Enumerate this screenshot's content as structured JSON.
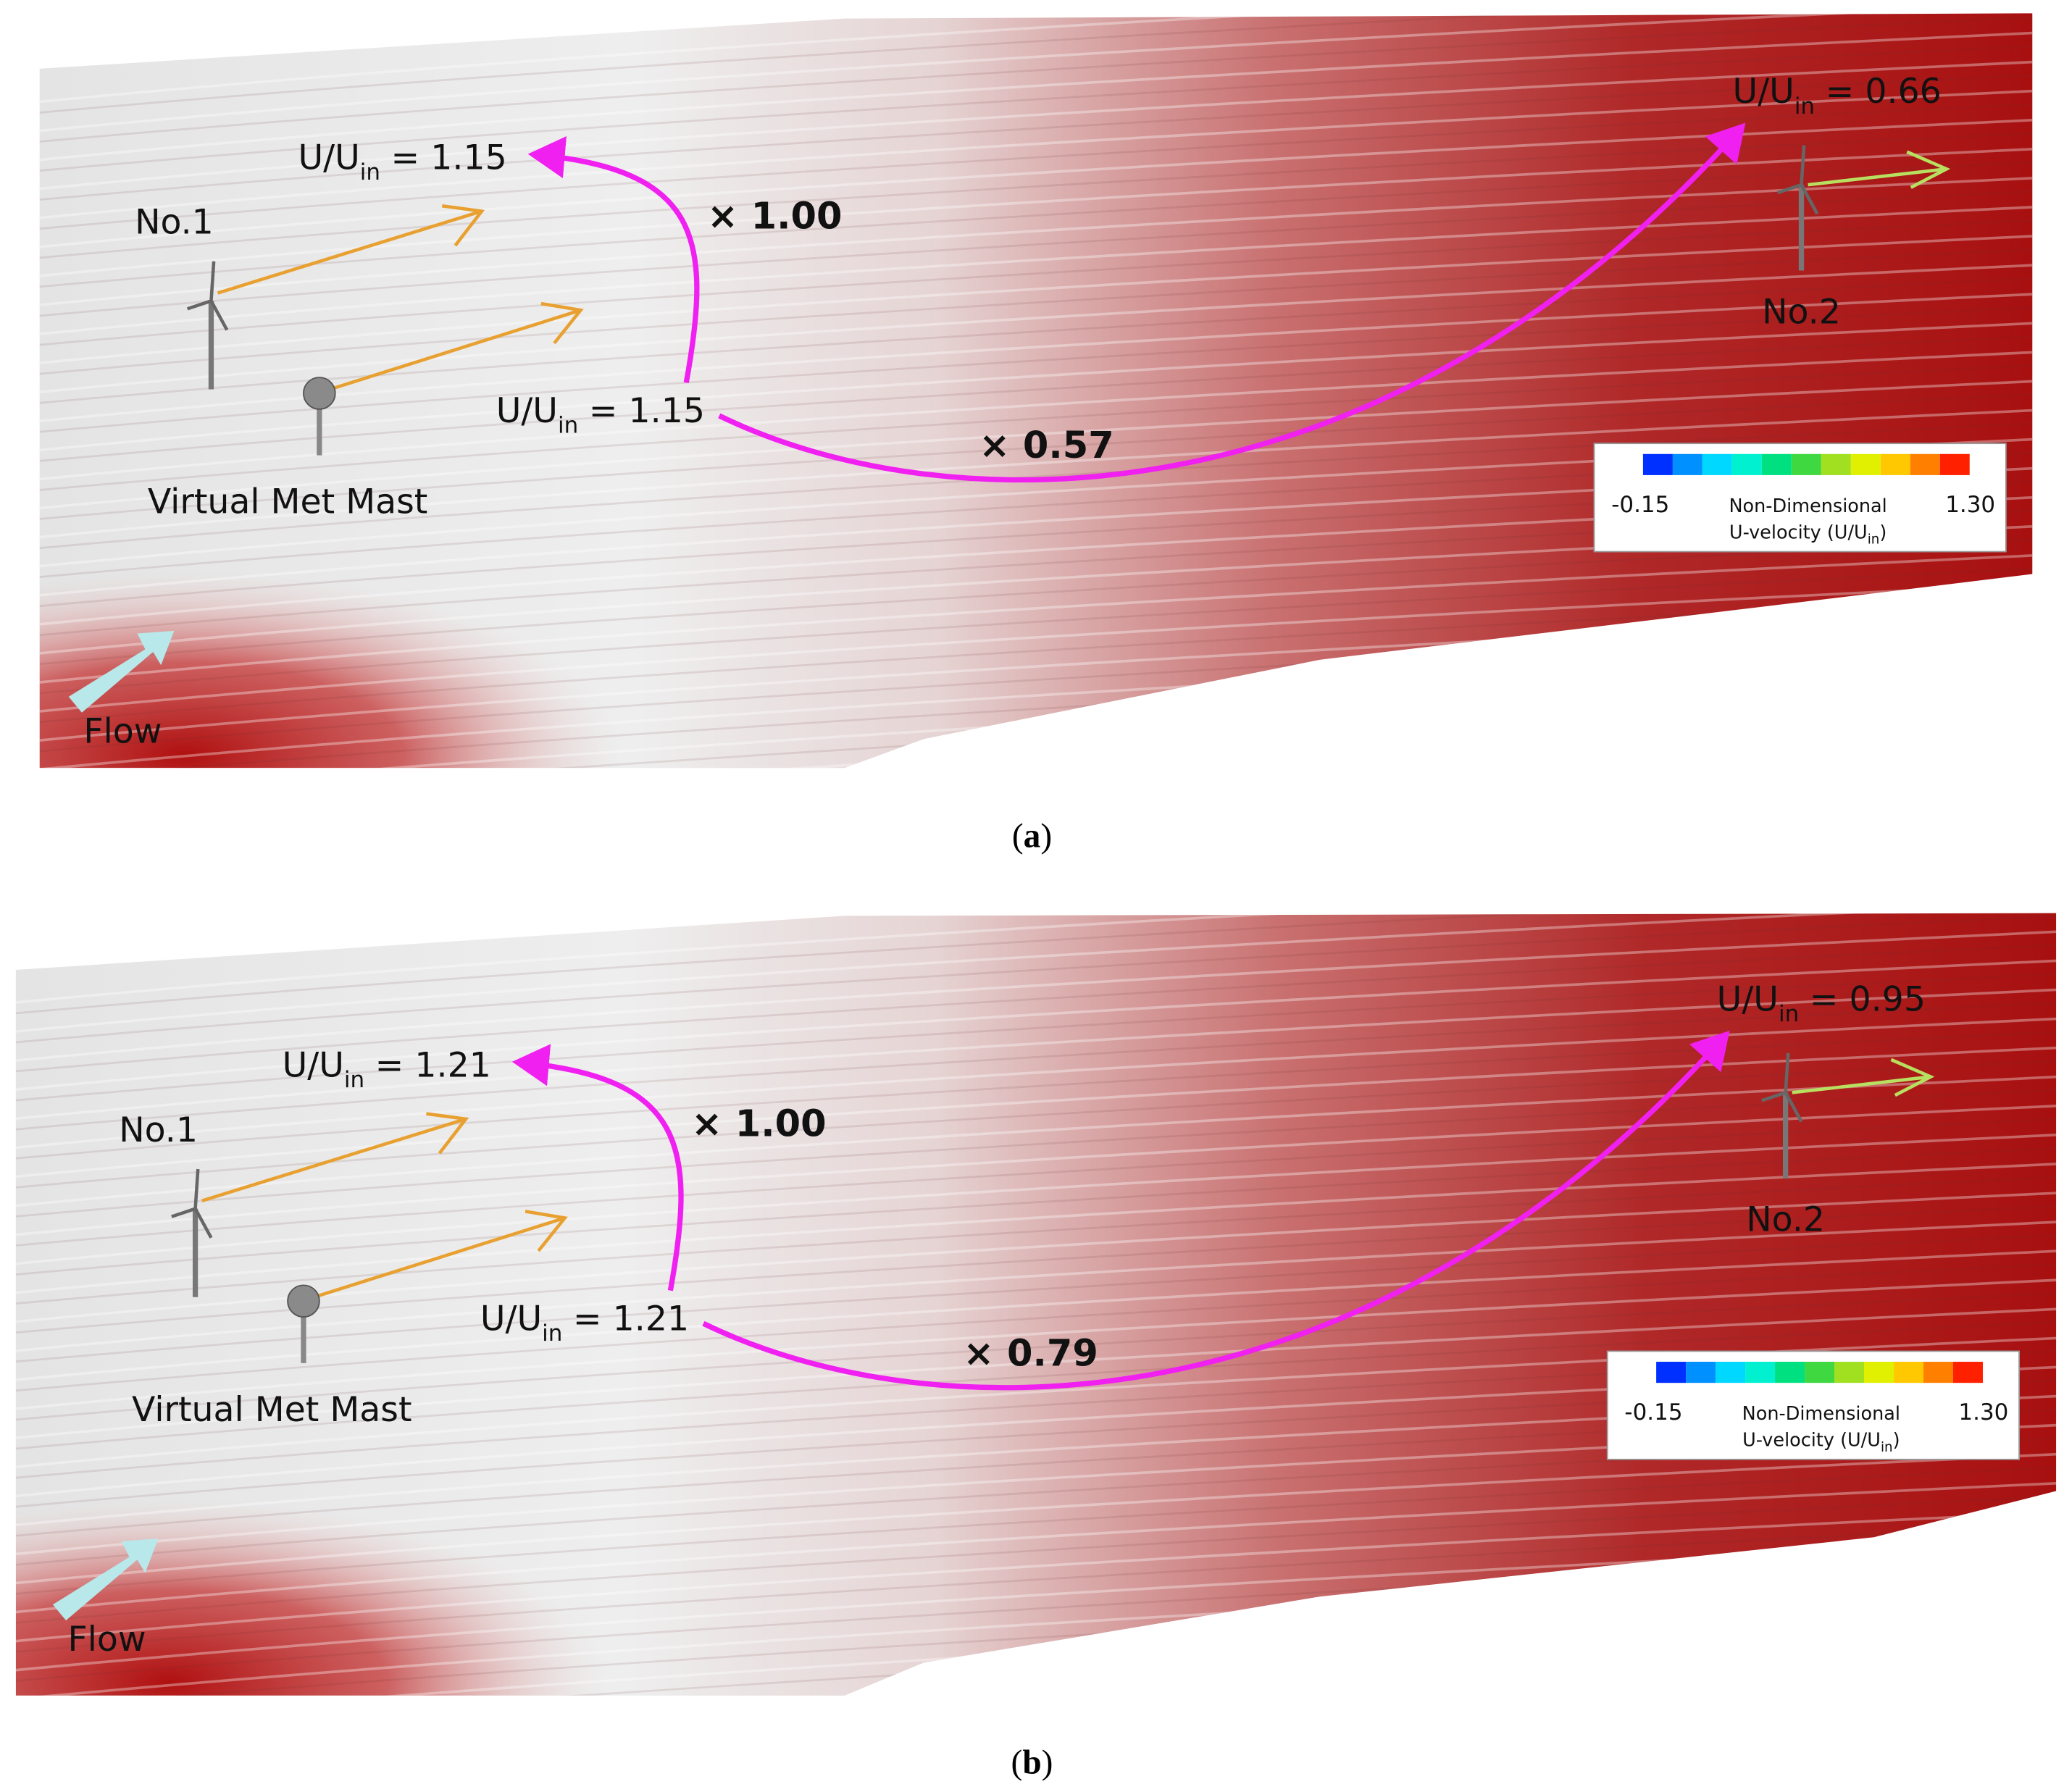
{
  "panels": [
    {
      "caption": {
        "open": "(",
        "letter": "a",
        "close": ")"
      },
      "turbine_1": "No.1",
      "turbine_2": "No.2",
      "mast": "Virtual Met Mast",
      "flow": "Flow",
      "ratio_near": "× 1.00",
      "ratio_far": "× 0.57",
      "velocity_mast": {
        "prefix": "U/U",
        "sub": "in",
        "value": "= 1.15"
      },
      "velocity_1": {
        "prefix": "U/U",
        "sub": "in",
        "value": "= 1.15"
      },
      "velocity_2": {
        "prefix": "U/U",
        "sub": "in",
        "value": "= 0.66"
      },
      "legend": {
        "min": "-0.15",
        "max": "1.30",
        "title": "Non-Dimensional",
        "subtitle": {
          "prefix": "U-velocity (U/U",
          "sub": "in",
          "suffix": ")"
        }
      }
    },
    {
      "caption": {
        "open": "(",
        "letter": "b",
        "close": ")"
      },
      "turbine_1": "No.1",
      "turbine_2": "No.2",
      "mast": "Virtual Met Mast",
      "flow": "Flow",
      "ratio_near": "× 1.00",
      "ratio_far": "× 0.79",
      "velocity_mast": {
        "prefix": "U/U",
        "sub": "in",
        "value": "= 1.21"
      },
      "velocity_1": {
        "prefix": "U/U",
        "sub": "in",
        "value": "= 1.21"
      },
      "velocity_2": {
        "prefix": "U/U",
        "sub": "in",
        "value": "= 0.95"
      },
      "legend": {
        "min": "-0.15",
        "max": "1.30",
        "title": "Non-Dimensional",
        "subtitle": {
          "prefix": "U-velocity (U/U",
          "sub": "in",
          "suffix": ")"
        }
      }
    }
  ],
  "colorbar": [
    "#0030ff",
    "#0090ff",
    "#00d8ff",
    "#00f0d0",
    "#00e080",
    "#40d840",
    "#a0e020",
    "#e0f000",
    "#ffc800",
    "#ff8000",
    "#ff2000"
  ]
}
